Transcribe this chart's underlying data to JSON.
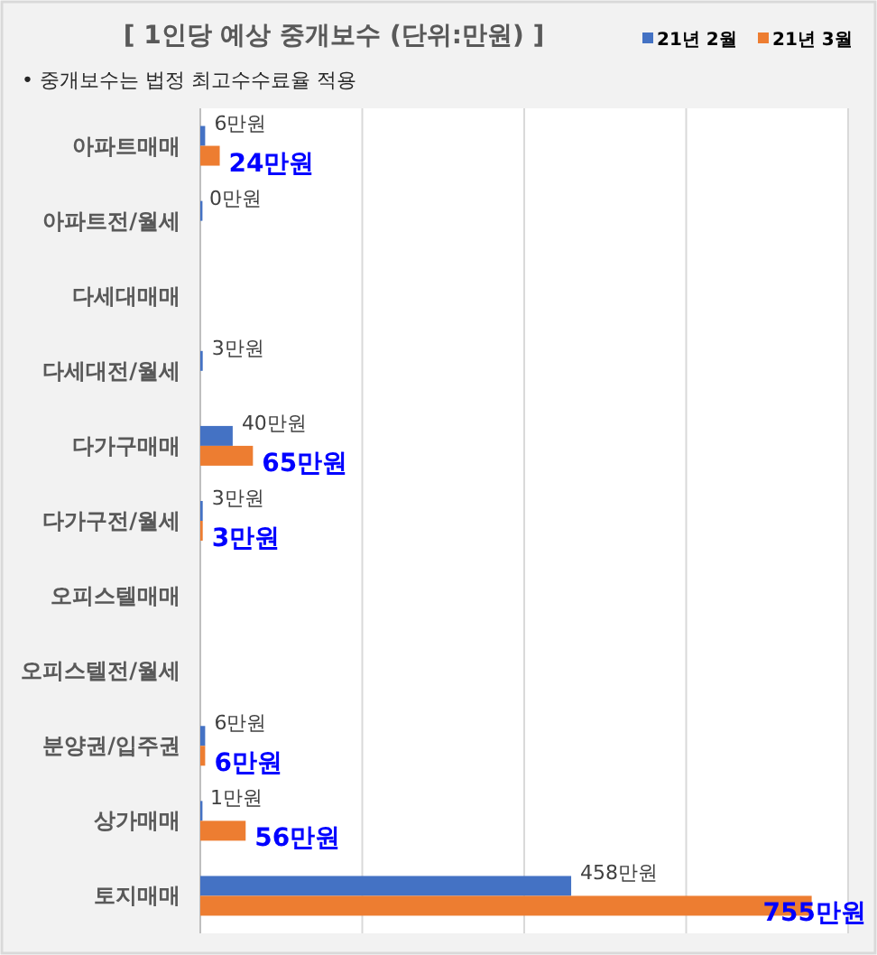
{
  "chart_data": {
    "type": "bar",
    "orientation": "horizontal",
    "title": "[ 1인당 예상 중개보수 (단위:만원) ]",
    "annotations": [
      "• 중개보수는 법정 최고수수료율 적용"
    ],
    "categories": [
      "아파트매매",
      "아파트전/월세",
      "다세대매매",
      "다세대전/월세",
      "다가구매매",
      "다가구전/월세",
      "오피스텔매매",
      "오피스텔전/월세",
      "분양권/입주권",
      "상가매매",
      "토지매매"
    ],
    "series": [
      {
        "name": "21년 2월",
        "color": "#4472c4",
        "values": [
          6,
          0,
          null,
          3,
          40,
          3,
          null,
          null,
          6,
          1,
          458
        ],
        "value_labels": [
          "6만원",
          "0만원",
          null,
          "3만원",
          "40만원",
          "3만원",
          null,
          null,
          "6만원",
          "1만원",
          "458만원"
        ]
      },
      {
        "name": "21년 3월",
        "color": "#ed7d31",
        "values": [
          24,
          null,
          null,
          null,
          65,
          3,
          null,
          null,
          6,
          56,
          755
        ],
        "value_labels": [
          "24만원",
          null,
          null,
          null,
          "65만원",
          "3만원",
          null,
          null,
          "6만원",
          "56만원",
          "755만원"
        ]
      }
    ],
    "xlim": [
      0,
      800
    ],
    "xticks": [
      {
        "value": 0,
        "label": null
      },
      {
        "value": 200,
        "label": null
      },
      {
        "value": 400,
        "label": null
      },
      {
        "value": 600,
        "label": null
      },
      {
        "value": 800,
        "label": null
      }
    ],
    "grid": "x",
    "legend": "top right",
    "tick_labels": "y"
  }
}
